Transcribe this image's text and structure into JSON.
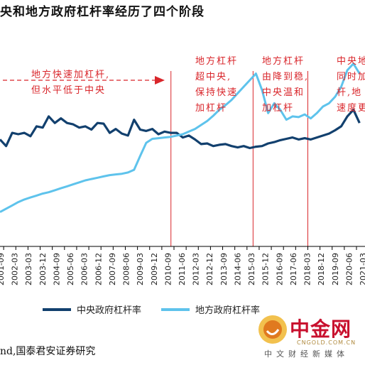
{
  "title": "央和地方政府杠杆率经历了四个阶段",
  "annotations": [
    {
      "lines": [
        "地方快速加杠杆,",
        "但水平低于中央"
      ]
    },
    {
      "lines": [
        "地方杠杆",
        "超中央,",
        "保持快速",
        "加杠杆"
      ]
    },
    {
      "lines": [
        "地方杠杆",
        "由降到稳,",
        "中央温和",
        "加杠杆"
      ]
    },
    {
      "lines": [
        "中央地",
        "同时加",
        "杆,地",
        "速度更"
      ]
    }
  ],
  "source": "nd,国泰君安证券研究",
  "watermark": {
    "name": "中金网",
    "url": "CNGOLD.COM.CN",
    "sub": "中文财经新媒体"
  },
  "colors": {
    "central": "#12406e",
    "local": "#5ec3ec",
    "accent": "#d9262b"
  },
  "chart_data": {
    "type": "line",
    "x_ticks": [
      "2001-07",
      "2002-03",
      "2002-11",
      "2003-07",
      "2004-03",
      "2004-11",
      "2005-07",
      "2006-03",
      "2006-11",
      "2007-07",
      "2008-03",
      "2008-11",
      "2009-07",
      "2010-03",
      "2010-11",
      "2011-07",
      "2012-03",
      "2012-11",
      "2013-07",
      "2014-03",
      "2014-11",
      "2015-07",
      "2016-03",
      "2016-11",
      "2017-07",
      "2018-03",
      "2018-11",
      "2019-07",
      "2020-03",
      "2020-11"
    ],
    "x_labels_shown": [
      "2001-09",
      "2002-03",
      "2003-03",
      "2003-12",
      "2004-09",
      "2005-06",
      "2006-03",
      "2006-12",
      "2007-09",
      "2008-06",
      "2009-03",
      "2009-12",
      "2010-09",
      "2011-06",
      "2012-03",
      "2012-12",
      "2013-09",
      "2014-06",
      "2015-03",
      "2015-12",
      "2016-09",
      "2017-06",
      "2018-03",
      "2018-12",
      "2019-09",
      "2020-06",
      "2021-03"
    ],
    "stage_dividers": [
      "2010-09",
      "2015-03",
      "2018-03"
    ],
    "series": [
      {
        "name": "中央政府杠杆率",
        "values": [
          16.0,
          15.0,
          17.0,
          16.8,
          17.0,
          16.5,
          18.0,
          17.8,
          19.5,
          18.5,
          19.2,
          18.5,
          18.3,
          17.8,
          18.0,
          17.5,
          18.5,
          18.4,
          17.0,
          17.6,
          16.9,
          16.6,
          19.0,
          17.5,
          17.3,
          17.6,
          16.8,
          17.2,
          17.0,
          17.0,
          16.3,
          16.6,
          16.0,
          15.3,
          15.4,
          15.0,
          15.2,
          15.3,
          15.0,
          14.8,
          15.0,
          14.7,
          14.9,
          15.0,
          15.4,
          15.6,
          15.9,
          16.1,
          16.3,
          16.0,
          16.2,
          16.0,
          16.3,
          16.6,
          16.9,
          17.4,
          18.0,
          19.5,
          20.5,
          18.5
        ]
      },
      {
        "name": "地方政府杠杆率",
        "values": [
          5.0,
          5.5,
          6.0,
          6.5,
          6.9,
          7.2,
          7.5,
          7.8,
          8.0,
          8.3,
          8.6,
          8.9,
          9.2,
          9.5,
          9.8,
          10.0,
          10.2,
          10.4,
          10.6,
          10.7,
          10.8,
          11.0,
          11.4,
          13.5,
          15.5,
          16.1,
          16.2,
          16.3,
          16.4,
          16.6,
          16.8,
          17.2,
          17.6,
          18.2,
          18.8,
          19.6,
          20.5,
          21.2,
          22.0,
          23.0,
          24.0,
          25.0,
          26.0,
          23.5,
          20.0,
          21.5,
          20.5,
          19.0,
          19.5,
          19.4,
          19.8,
          19.2,
          20.0,
          21.0,
          21.5,
          22.5,
          24.0,
          26.5,
          27.5,
          26.0
        ]
      }
    ]
  }
}
